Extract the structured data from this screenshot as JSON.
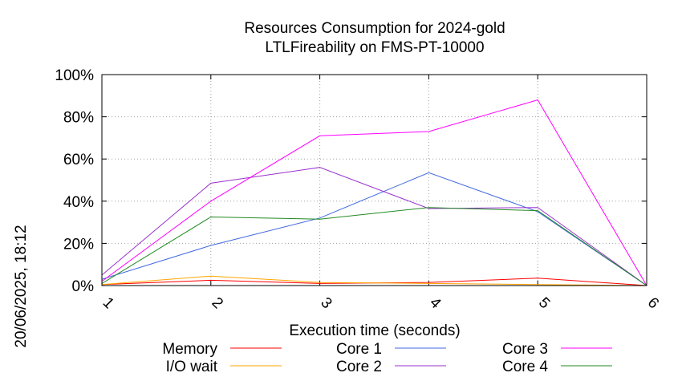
{
  "title_line1": "Resources Consumption for 2024-gold",
  "title_line2": "LTLFireability on FMS-PT-10000",
  "side_label": "20/06/2025, 18:12",
  "chart_data": {
    "type": "line",
    "title": "Resources Consumption for 2024-gold LTLFireability on FMS-PT-10000",
    "xlabel": "Execution time (seconds)",
    "ylabel": "",
    "x": [
      1,
      2,
      3,
      4,
      5,
      6
    ],
    "xlim": [
      1,
      6
    ],
    "ylim": [
      0,
      100
    ],
    "y_ticks": [
      0,
      20,
      40,
      60,
      80,
      100
    ],
    "y_tick_labels": [
      "0%",
      "20%",
      "40%",
      "60%",
      "80%",
      "100%"
    ],
    "x_tick_labels": [
      "1",
      "2",
      "3",
      "4",
      "5",
      "6"
    ],
    "grid": true,
    "legend_position": "bottom",
    "series": [
      {
        "name": "Memory",
        "color": "#ff0000",
        "values": [
          0.5,
          2.5,
          1,
          1.5,
          3.5,
          0
        ]
      },
      {
        "name": "I/O wait",
        "color": "#ffa500",
        "values": [
          0.5,
          4.5,
          1.5,
          1,
          0.5,
          0
        ]
      },
      {
        "name": "Core 1",
        "color": "#4169e1",
        "values": [
          3,
          19,
          32,
          53.5,
          35,
          0
        ]
      },
      {
        "name": "Core 2",
        "color": "#9932cc",
        "values": [
          5,
          48.5,
          56,
          36.5,
          37,
          0
        ]
      },
      {
        "name": "Core 3",
        "color": "#ff00ff",
        "values": [
          2,
          40,
          71,
          73,
          88,
          0
        ]
      },
      {
        "name": "Core 4",
        "color": "#228b22",
        "values": [
          1,
          32.5,
          31.5,
          37,
          35.5,
          0
        ]
      }
    ]
  }
}
